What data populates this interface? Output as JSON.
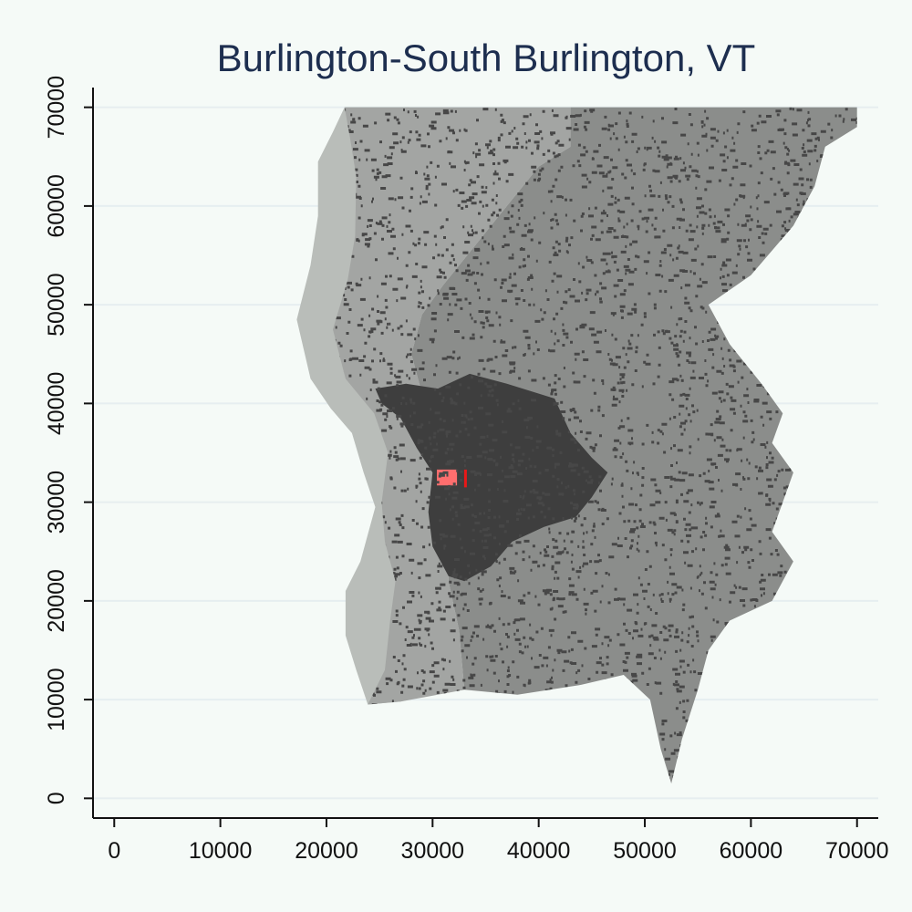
{
  "chart_data": {
    "type": "map",
    "title": "Burlington-South Burlington, VT",
    "xlabel": "",
    "ylabel": "",
    "xlim": [
      -2000,
      72000
    ],
    "ylim": [
      -2000,
      72000
    ],
    "x_ticks": [
      0,
      10000,
      20000,
      30000,
      40000,
      50000,
      60000,
      70000
    ],
    "y_ticks": [
      0,
      10000,
      20000,
      30000,
      40000,
      50000,
      60000,
      70000
    ],
    "grid": "horizontal",
    "layers": [
      {
        "name": "water",
        "color": "#b9bdb9",
        "points": [
          [
            21700,
            70000
          ],
          [
            27800,
            70000
          ],
          [
            27600,
            67000
          ],
          [
            26400,
            63000
          ],
          [
            26800,
            58000
          ],
          [
            26100,
            53000
          ],
          [
            26900,
            47000
          ],
          [
            26600,
            42000
          ],
          [
            27000,
            36000
          ],
          [
            27400,
            31000
          ],
          [
            28400,
            26000
          ],
          [
            30100,
            22000
          ],
          [
            31000,
            16000
          ],
          [
            32000,
            11000
          ],
          [
            27000,
            9800
          ],
          [
            23900,
            9500
          ],
          [
            22800,
            13000
          ],
          [
            21800,
            16500
          ],
          [
            21800,
            21000
          ],
          [
            23200,
            24000
          ],
          [
            24600,
            29500
          ],
          [
            23500,
            33000
          ],
          [
            22400,
            37000
          ],
          [
            20400,
            39500
          ],
          [
            18500,
            42500
          ],
          [
            17200,
            48500
          ],
          [
            18500,
            54000
          ],
          [
            19200,
            59000
          ],
          [
            19200,
            64500
          ],
          [
            20600,
            67500
          ]
        ]
      },
      {
        "name": "land-medium",
        "color": "#a3a5a3",
        "points": [
          [
            21700,
            70000
          ],
          [
            43000,
            70000
          ],
          [
            43000,
            66000
          ],
          [
            40000,
            64000
          ],
          [
            37000,
            60000
          ],
          [
            34000,
            56000
          ],
          [
            31000,
            52000
          ],
          [
            29000,
            49000
          ],
          [
            28000,
            45000
          ],
          [
            29000,
            41000
          ],
          [
            30500,
            38000
          ],
          [
            31500,
            35000
          ],
          [
            32000,
            31000
          ],
          [
            31500,
            27000
          ],
          [
            31500,
            22000
          ],
          [
            32500,
            17000
          ],
          [
            33000,
            11000
          ],
          [
            27000,
            9800
          ],
          [
            23900,
            9500
          ],
          [
            25500,
            13000
          ],
          [
            26000,
            18000
          ],
          [
            26500,
            22000
          ],
          [
            25500,
            26000
          ],
          [
            25200,
            30000
          ],
          [
            25800,
            35000
          ],
          [
            24500,
            39000
          ],
          [
            21800,
            42500
          ],
          [
            20600,
            47500
          ],
          [
            22000,
            52500
          ],
          [
            22700,
            57000
          ],
          [
            22800,
            63000
          ],
          [
            22200,
            67000
          ]
        ]
      },
      {
        "name": "land-dark",
        "color": "#8b8d8b",
        "points": [
          [
            33000,
            70000
          ],
          [
            70000,
            70000
          ],
          [
            70000,
            68000
          ],
          [
            67000,
            66000
          ],
          [
            66000,
            62000
          ],
          [
            64000,
            58000
          ],
          [
            60000,
            53000
          ],
          [
            56000,
            50000
          ],
          [
            58000,
            46000
          ],
          [
            61000,
            42000
          ],
          [
            63000,
            39000
          ],
          [
            62000,
            36000
          ],
          [
            64000,
            33000
          ],
          [
            63000,
            30000
          ],
          [
            62000,
            27000
          ],
          [
            64000,
            24000
          ],
          [
            62000,
            20000
          ],
          [
            58000,
            18000
          ],
          [
            56000,
            15000
          ],
          [
            55000,
            11000
          ],
          [
            53500,
            6000
          ],
          [
            52500,
            1500
          ],
          [
            51500,
            5000
          ],
          [
            50500,
            10000
          ],
          [
            48000,
            12500
          ],
          [
            44000,
            11500
          ],
          [
            38000,
            10500
          ],
          [
            33000,
            11000
          ],
          [
            32500,
            17000
          ],
          [
            31500,
            22000
          ],
          [
            31500,
            27000
          ],
          [
            32000,
            31000
          ],
          [
            31500,
            35000
          ],
          [
            30500,
            38000
          ],
          [
            29000,
            41000
          ],
          [
            28000,
            45000
          ],
          [
            29000,
            49000
          ],
          [
            31000,
            52000
          ],
          [
            34000,
            56000
          ],
          [
            37000,
            60000
          ],
          [
            40000,
            64000
          ],
          [
            43000,
            66000
          ],
          [
            43000,
            70000
          ]
        ]
      },
      {
        "name": "urban",
        "color": "#3e3e3e",
        "points": [
          [
            24600,
            41500
          ],
          [
            27500,
            42000
          ],
          [
            30500,
            41500
          ],
          [
            33500,
            43000
          ],
          [
            37000,
            42000
          ],
          [
            41500,
            40500
          ],
          [
            43000,
            37000
          ],
          [
            45000,
            34500
          ],
          [
            46500,
            33000
          ],
          [
            45000,
            30500
          ],
          [
            43500,
            28500
          ],
          [
            40500,
            27500
          ],
          [
            37500,
            26000
          ],
          [
            35500,
            23500
          ],
          [
            33000,
            22000
          ],
          [
            31500,
            22500
          ],
          [
            30000,
            25500
          ],
          [
            29600,
            29000
          ],
          [
            30000,
            33000
          ],
          [
            28500,
            35500
          ],
          [
            27000,
            38500
          ],
          [
            25200,
            40000
          ]
        ]
      },
      {
        "name": "highlight",
        "color": "#ff6e6e",
        "points": [
          [
            30400,
            33300
          ],
          [
            32300,
            33300
          ],
          [
            32300,
            31700
          ],
          [
            30400,
            31700
          ]
        ]
      }
    ]
  }
}
